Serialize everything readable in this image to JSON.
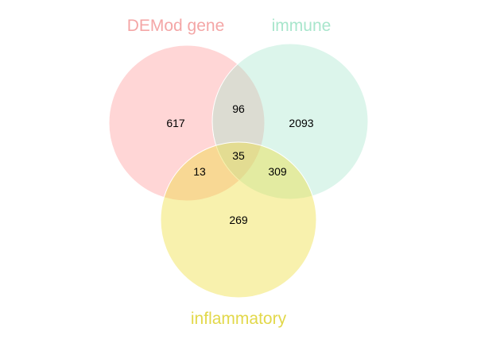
{
  "sets": [
    {
      "label": "DEMod gene",
      "fill": "#ff9999",
      "label_color": "#f4a6a6"
    },
    {
      "label": "immune",
      "fill": "#a8e6cc",
      "label_color": "#a8e6cc"
    },
    {
      "label": "inflammatory",
      "fill": "#eedd33",
      "label_color": "#e2d84a"
    }
  ],
  "regions": {
    "demod_only": "617",
    "immune_only": "2093",
    "inflammatory_only": "269",
    "demod_immune": "96",
    "demod_inflammatory": "13",
    "immune_inflammatory": "309",
    "all_three": "35"
  }
}
